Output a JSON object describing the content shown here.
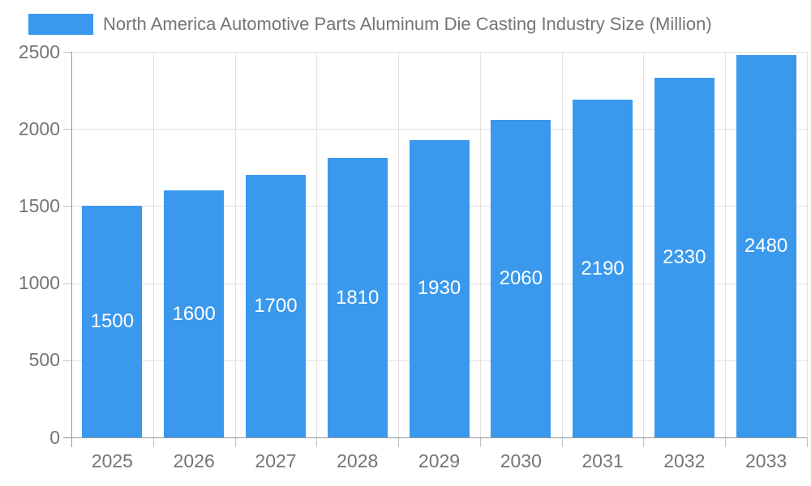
{
  "chart_data": {
    "type": "bar",
    "title": "North America Automotive Parts Aluminum Die Casting Industry Size (Million)",
    "categories": [
      "2025",
      "2026",
      "2027",
      "2028",
      "2029",
      "2030",
      "2031",
      "2032",
      "2033"
    ],
    "values": [
      1500,
      1600,
      1700,
      1810,
      1930,
      2060,
      2190,
      2330,
      2480
    ],
    "bar_labels": [
      "1500",
      "1600",
      "1700",
      "1810",
      "1930",
      "2060",
      "2190",
      "2330",
      "2480"
    ],
    "xlabel": "",
    "ylabel": "",
    "ylim": [
      0,
      2500
    ],
    "yticks": [
      0,
      500,
      1000,
      1500,
      2000,
      2500
    ],
    "grid": true,
    "legend_position": "top-left",
    "colors": {
      "bar": "#3a99ec",
      "bar_label": "#ffffff",
      "grid": "#e2e2e2",
      "axis": "#999999",
      "tick": "#c0c0c0",
      "text": "#757575",
      "background": "#ffffff"
    }
  }
}
